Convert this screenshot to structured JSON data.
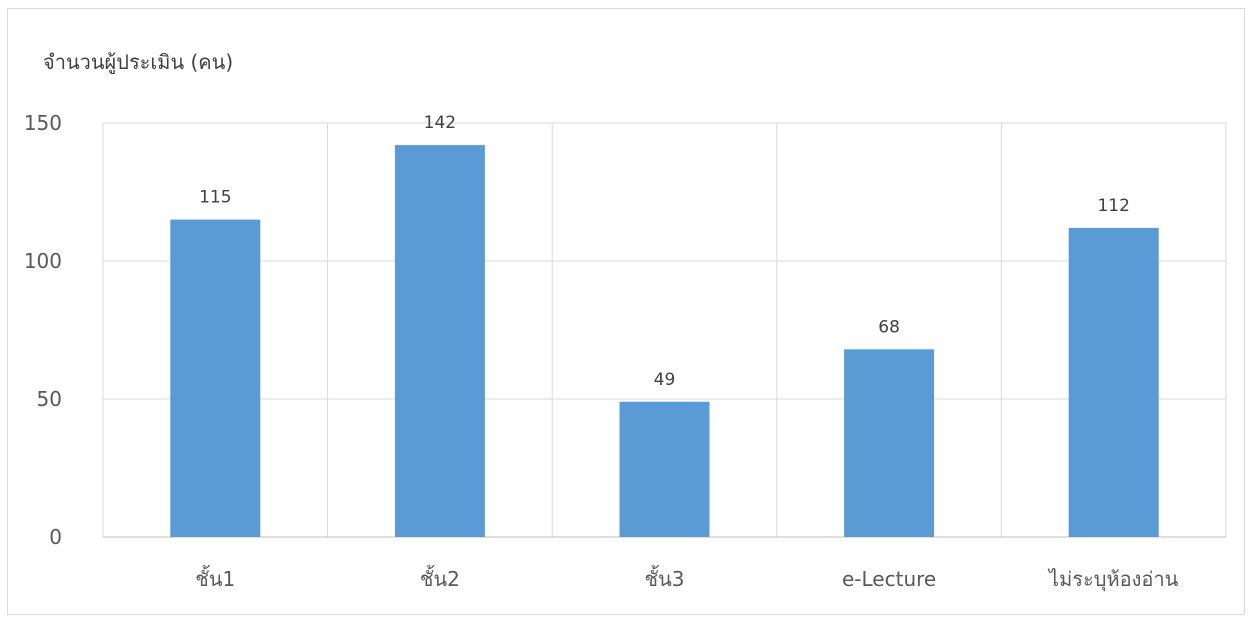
{
  "chart_data": {
    "type": "bar",
    "title": "",
    "ylabel": "จำนวนผู้ประเมิน (คน)",
    "xlabel": "",
    "categories": [
      "ชั้น1",
      "ชั้น2",
      "ชั้น3",
      "e-Lecture",
      "ไม่ระบุห้องอ่าน"
    ],
    "values": [
      115,
      142,
      49,
      68,
      112
    ],
    "data_labels": [
      "115",
      "142",
      "49",
      "68",
      "112"
    ],
    "ylim": [
      0,
      150
    ],
    "yticks": [
      0,
      50,
      100,
      150
    ],
    "ytick_labels": [
      "0",
      "50",
      "100",
      "150"
    ],
    "grid": true,
    "legend": "none",
    "colors": {
      "bar": "#5b9bd5",
      "grid": "#d9d9d9",
      "text": "#595959"
    }
  }
}
